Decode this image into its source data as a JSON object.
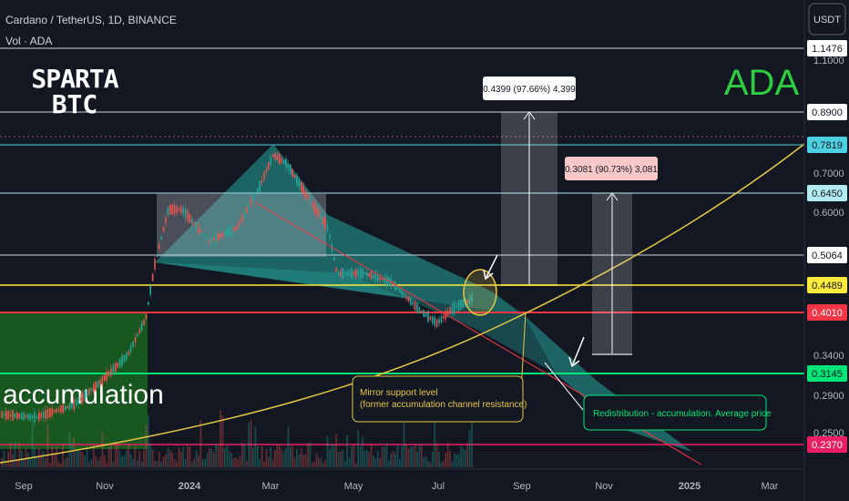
{
  "header": {
    "symbol": "Cardano / TetherUS, 1D, BINANCE",
    "volume": "Vol · ADA",
    "currency_button": "USDT"
  },
  "brand": {
    "line1": "SPARTA",
    "line2": "BTC"
  },
  "ticker_label": "ADA",
  "colors": {
    "background": "#131722",
    "teal": "#26a69a",
    "accumulation_green": "#1b5e20",
    "curve_yellow": "#e6c844",
    "ticker_green": "#2ecc40",
    "support_red": "#f23645",
    "bright_green": "#00e676",
    "pink": "#e91e63"
  },
  "annotations": {
    "accumulation": "accumulation",
    "mirror_support_line1": "Mirror support level",
    "mirror_support_line2": "(former accumulation channel resistance)",
    "redistribution": "Redistribution - accumulation. Average price",
    "measure_1": "0.4399 (97.66%) 4,399",
    "measure_2": "0.3081 (90.73%) 3,081"
  },
  "chart_data": {
    "type": "candlestick",
    "title": "Cardano / TetherUS, 1D, BINANCE",
    "y_scale": "log",
    "x_ticks": [
      "Sep",
      "Nov",
      "2024",
      "Mar",
      "May",
      "Jul",
      "Sep",
      "Nov",
      "2025",
      "Mar"
    ],
    "y_ticks": [
      "1.1000",
      "0.7000",
      "0.6000",
      "0.3400",
      "0.2900",
      "0.2500"
    ],
    "price_levels": [
      {
        "value": "1.1476",
        "color": "#ffffff",
        "text_color": "#131722"
      },
      {
        "value": "0.8900",
        "color": "#ffffff",
        "text_color": "#131722"
      },
      {
        "value": "0.7819",
        "color": "#4dd0e1",
        "text_color": "#131722"
      },
      {
        "value": "0.6450",
        "color": "#b2ebf2",
        "text_color": "#131722"
      },
      {
        "value": "0.5064",
        "color": "#ffffff",
        "text_color": "#131722"
      },
      {
        "value": "0.4489",
        "color": "#ffeb3b",
        "text_color": "#131722"
      },
      {
        "value": "0.4010",
        "color": "#f23645",
        "text_color": "#ffffff"
      },
      {
        "value": "0.3145",
        "color": "#00e676",
        "text_color": "#131722"
      },
      {
        "value": "0.2370",
        "color": "#e91e63",
        "text_color": "#ffffff"
      }
    ],
    "measurements": [
      {
        "label": "0.4399 (97.66%) 4,399",
        "change": 0.4399,
        "percent": 97.66
      },
      {
        "label": "0.3081 (90.73%) 3,081",
        "change": 0.3081,
        "percent": 90.73
      }
    ]
  }
}
